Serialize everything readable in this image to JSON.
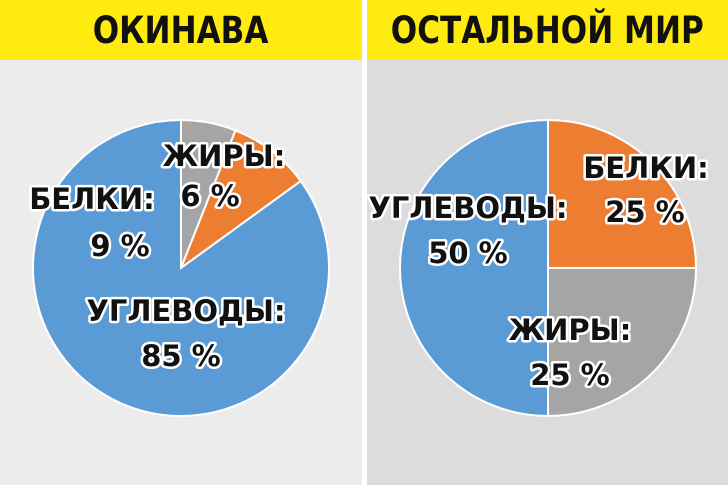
{
  "chart_data": [
    {
      "type": "pie",
      "title": "ОКИНАВА",
      "slices": [
        {
          "label": "ЖИРЫ:",
          "value": 6,
          "value_label": "6 %",
          "color": "#a5a5a5"
        },
        {
          "label": "БЕЛКИ:",
          "value": 9,
          "value_label": "9 %",
          "color": "#ed7d31"
        },
        {
          "label": "УГЛЕВОДЫ:",
          "value": 85,
          "value_label": "85 %",
          "color": "#5b9bd5"
        }
      ]
    },
    {
      "type": "pie",
      "title": "ОСТАЛЬНОЙ МИР",
      "slices": [
        {
          "label": "БЕЛКИ:",
          "value": 25,
          "value_label": "25 %",
          "color": "#ed7d31"
        },
        {
          "label": "ЖИРЫ:",
          "value": 25,
          "value_label": "25 %",
          "color": "#a5a5a5"
        },
        {
          "label": "УГЛЕВОДЫ:",
          "value": 50,
          "value_label": "50 %",
          "color": "#5b9bd5"
        }
      ]
    }
  ]
}
